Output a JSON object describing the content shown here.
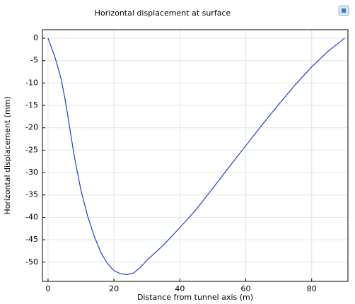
{
  "chart_data": {
    "type": "line",
    "title": "Horizontal displacement at surface",
    "x_label": "Distance from tunnel axis (m)",
    "y_label": "Horizontal displacement (mm)",
    "x": [
      0,
      1,
      2,
      3,
      4,
      5,
      6,
      7,
      8,
      10,
      12,
      14,
      16,
      18,
      20,
      22,
      24,
      26,
      28,
      30,
      35,
      40,
      45,
      50,
      55,
      60,
      65,
      70,
      75,
      80,
      85,
      90
    ],
    "values": [
      0,
      -2,
      -4,
      -6.5,
      -9.2,
      -13,
      -17.3,
      -22,
      -26.5,
      -34,
      -39.7,
      -44.2,
      -47.8,
      -50.3,
      -51.9,
      -52.6,
      -52.8,
      -52.4,
      -51.2,
      -49.6,
      -46.2,
      -42.3,
      -38.2,
      -33.5,
      -28.7,
      -24,
      -19.3,
      -14.8,
      -10.4,
      -6.4,
      -2.9,
      0
    ],
    "color": "#1f3fd0",
    "xlim": [
      -1.7,
      91
    ],
    "xticks": [
      0,
      20,
      40,
      60,
      80
    ],
    "ylim": [
      -54.3,
      1.9
    ],
    "yticks": [
      0,
      -5,
      -10,
      -15,
      -20,
      -25,
      -30,
      -35,
      -40,
      -45,
      -50
    ],
    "grid": true
  }
}
